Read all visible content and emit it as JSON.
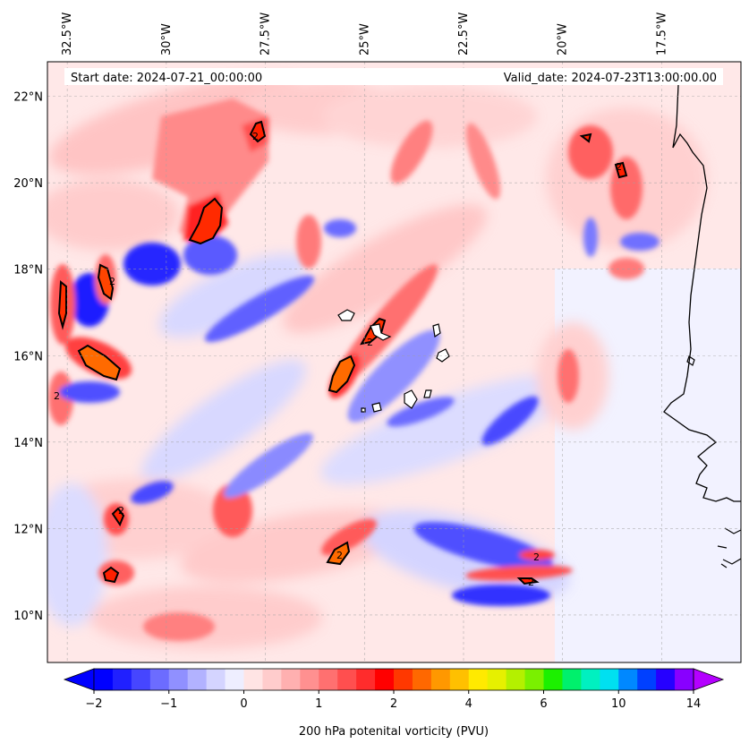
{
  "map": {
    "projection": "plate-carree",
    "extent": {
      "lon_min": -33.0,
      "lon_max": -15.5,
      "lat_min": 8.9,
      "lat_max": 22.8
    },
    "gridlines": true,
    "lon_ticks": [
      {
        "value": -32.5,
        "label": "32.5°W"
      },
      {
        "value": -30.0,
        "label": "30°W"
      },
      {
        "value": -27.5,
        "label": "27.5°W"
      },
      {
        "value": -25.0,
        "label": "25°W"
      },
      {
        "value": -22.5,
        "label": "22.5°W"
      },
      {
        "value": -20.0,
        "label": "20°W"
      },
      {
        "value": -17.5,
        "label": "17.5°W"
      }
    ],
    "lat_ticks": [
      {
        "value": 22,
        "label": "22°N"
      },
      {
        "value": 20,
        "label": "20°N"
      },
      {
        "value": 18,
        "label": "18°N"
      },
      {
        "value": 16,
        "label": "16°N"
      },
      {
        "value": 14,
        "label": "14°N"
      },
      {
        "value": 12,
        "label": "12°N"
      },
      {
        "value": 10,
        "label": "10°N"
      }
    ],
    "start_date": "Start date: 2024-07-21_00:00:00",
    "valid_date": "Valid_date: 2024-07-23T13:00:00.00",
    "contour_label": "2"
  },
  "colorbar": {
    "title": "200 hPa potenital vorticity (PVU)",
    "tick_labels": [
      "−2",
      "−1",
      "0",
      "1",
      "2",
      "4",
      "6",
      "10",
      "14"
    ],
    "colors": [
      "#0000ff",
      "#2020ff",
      "#4646ff",
      "#6c6cff",
      "#9090ff",
      "#b2b2ff",
      "#d4d4ff",
      "#eeeeff",
      "#ffe4e4",
      "#ffcccc",
      "#ffb0b0",
      "#ff9090",
      "#ff7070",
      "#ff4f4f",
      "#ff2c2c",
      "#ff0000",
      "#ff3800",
      "#ff6800",
      "#ff9800",
      "#ffc000",
      "#ffea00",
      "#e6f000",
      "#b4f000",
      "#7af000",
      "#1cf000",
      "#00f06c",
      "#00f0c0",
      "#00e0f0",
      "#0088ff",
      "#0040ff",
      "#2600ff",
      "#8800ff"
    ],
    "under_color": "#0000ff",
    "over_color": "#b400ff"
  }
}
